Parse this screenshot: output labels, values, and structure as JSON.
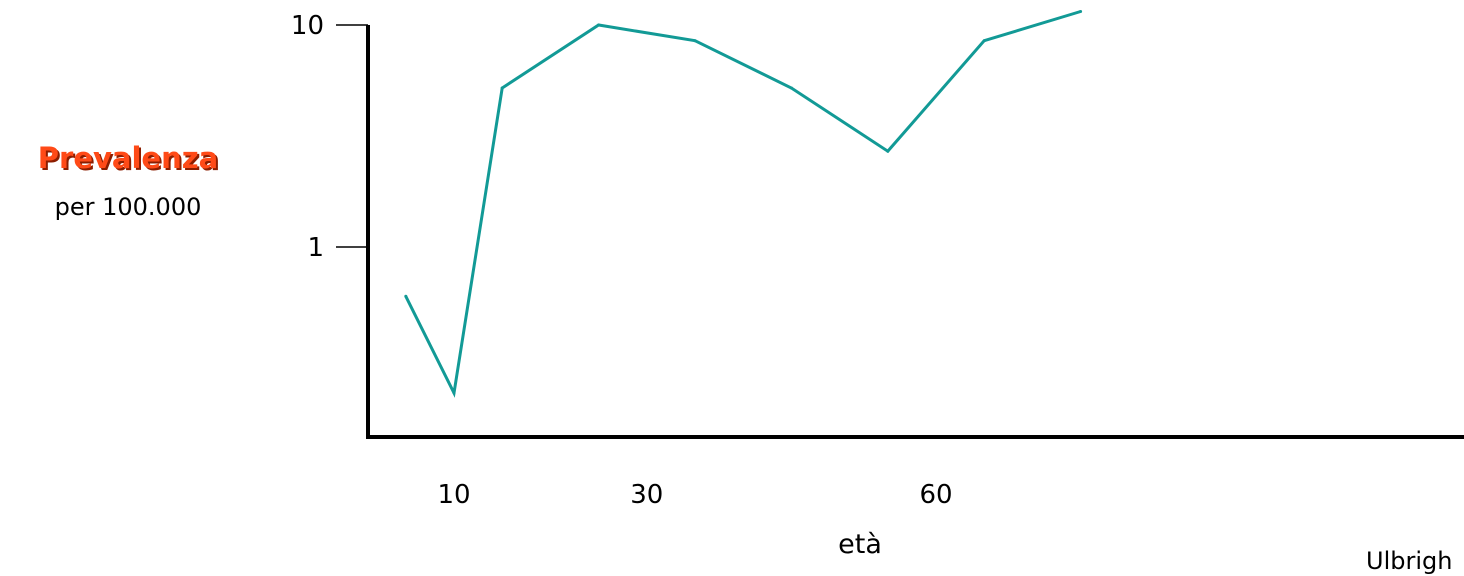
{
  "chart_data": {
    "type": "line",
    "title": "",
    "ylabel": "Prevalenza",
    "ylabel_sub": "per 100.000",
    "xlabel": "età",
    "source": "Ulbrigh",
    "y_scale": "log",
    "ylim": [
      0.16,
      11.5
    ],
    "xlim": [
      0,
      100
    ],
    "xticks": [
      10,
      30,
      60
    ],
    "yticks": [
      1,
      10
    ],
    "grid": false,
    "legend": "none",
    "colors": {
      "line": "#129a96",
      "ylabel": "#ff4a17",
      "ylabel_shadow": "#8c1d00",
      "axes": "#000000"
    },
    "series": [
      {
        "x": [
          5,
          10,
          15,
          25,
          35,
          45,
          55,
          65,
          75
        ],
        "values": [
          0.6,
          0.22,
          5.2,
          10,
          8.5,
          5.2,
          2.7,
          8.5,
          11.5
        ]
      }
    ]
  }
}
